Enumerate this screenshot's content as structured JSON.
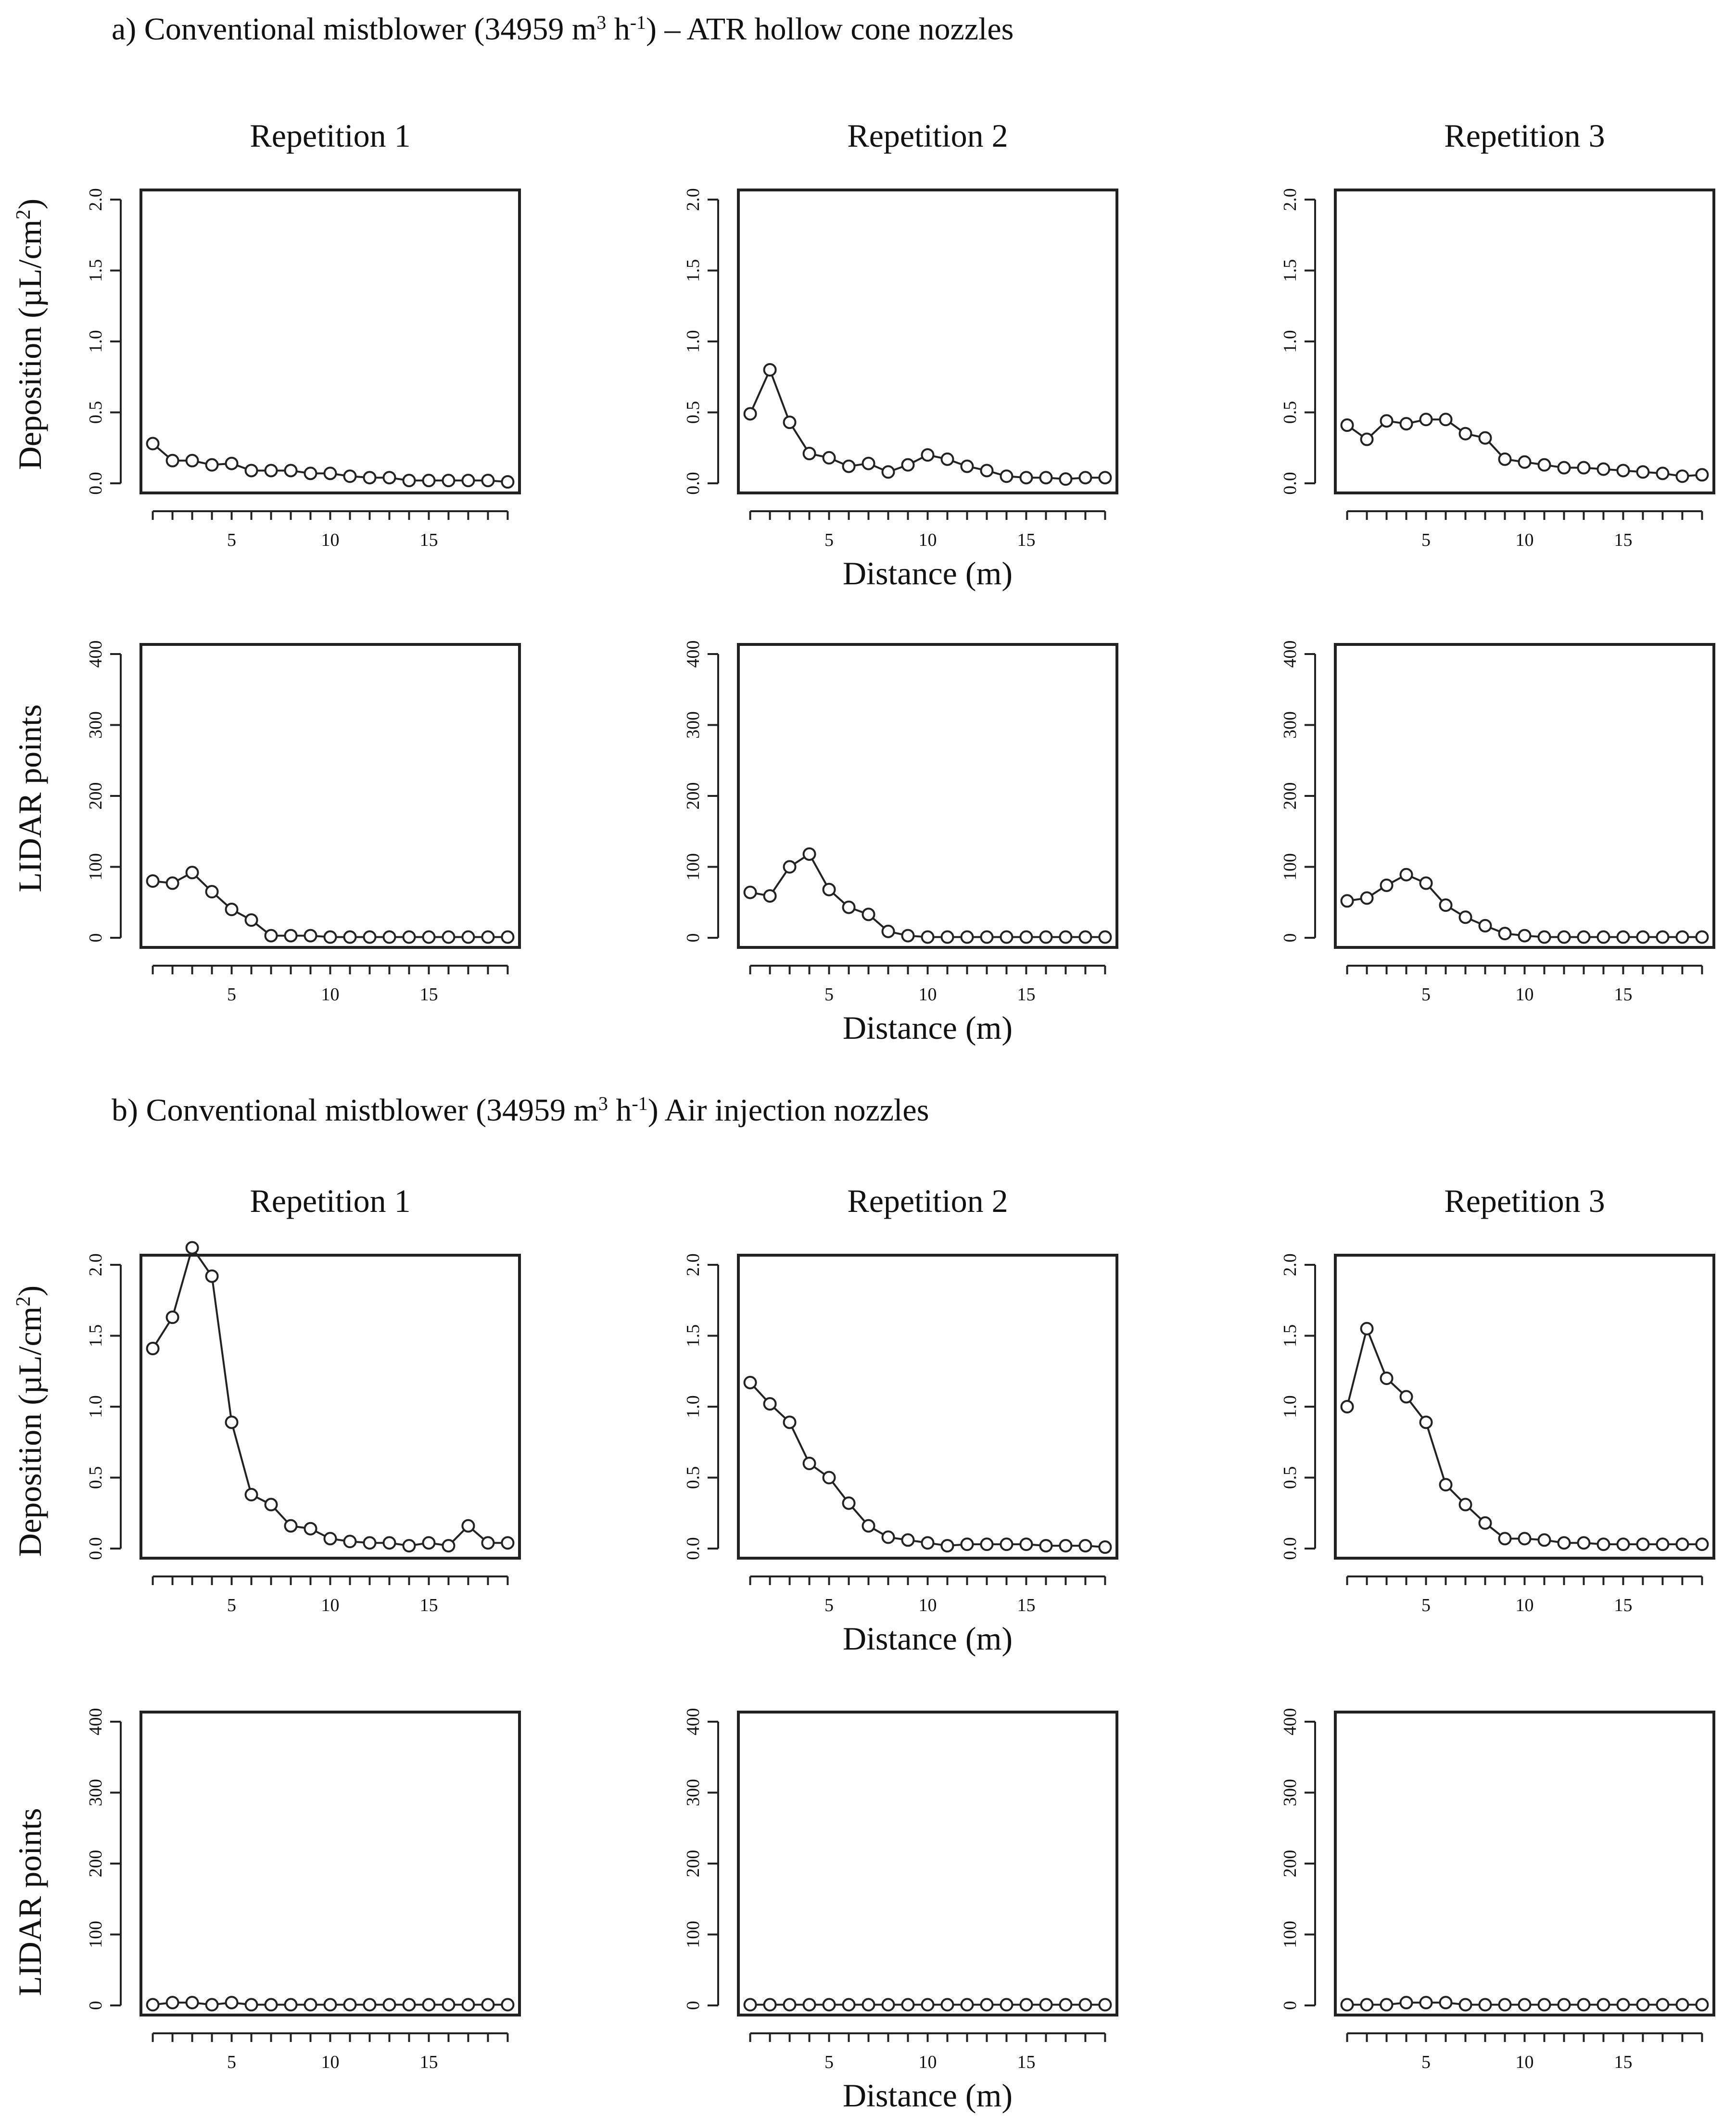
{
  "sections": [
    {
      "title_prefix": "a) Conventional mistblower (34959 m",
      "title_sup1": "3",
      "title_mid": " h",
      "title_sup2": "-1",
      "title_suffix": ") – ATR hollow cone nozzles"
    },
    {
      "title_prefix": "b) Conventional mistblower (34959 m",
      "title_sup1": "3",
      "title_mid": " h",
      "title_sup2": "-1",
      "title_suffix": ") Air injection nozzles"
    }
  ],
  "axis_text": {
    "deposition_ylabel_prefix": "Deposition (µL/cm",
    "deposition_ylabel_sup": "2",
    "deposition_ylabel_suffix": ")",
    "lidar_ylabel": "LIDAR points",
    "xlabel": "Distance (m)"
  },
  "chart_data": [
    {
      "type": "line",
      "title": "Repetition 1",
      "ylabel": "Deposition (µL/cm²)",
      "xlabel": "",
      "x": [
        1,
        2,
        3,
        4,
        5,
        6,
        7,
        8,
        9,
        10,
        11,
        12,
        13,
        14,
        15,
        16,
        17,
        18,
        19
      ],
      "y": [
        0.28,
        0.16,
        0.16,
        0.13,
        0.14,
        0.09,
        0.09,
        0.09,
        0.07,
        0.07,
        0.05,
        0.04,
        0.04,
        0.02,
        0.02,
        0.02,
        0.02,
        0.02,
        0.01
      ],
      "xticks": [
        5,
        10,
        15
      ],
      "yticks": [
        "0.0",
        "0.5",
        "1.0",
        "1.5",
        "2.0"
      ],
      "ylim": [
        0,
        2.0
      ],
      "xlim": [
        0.4,
        19.6
      ]
    },
    {
      "type": "line",
      "title": "Repetition 2",
      "ylabel": "",
      "xlabel": "Distance (m)",
      "x": [
        1,
        2,
        3,
        4,
        5,
        6,
        7,
        8,
        9,
        10,
        11,
        12,
        13,
        14,
        15,
        16,
        17,
        18,
        19
      ],
      "y": [
        0.49,
        0.8,
        0.43,
        0.21,
        0.18,
        0.12,
        0.14,
        0.08,
        0.13,
        0.2,
        0.17,
        0.12,
        0.09,
        0.05,
        0.04,
        0.04,
        0.03,
        0.04,
        0.04
      ],
      "xticks": [
        5,
        10,
        15
      ],
      "yticks": [
        "0.0",
        "0.5",
        "1.0",
        "1.5",
        "2.0"
      ],
      "ylim": [
        0,
        2.0
      ],
      "xlim": [
        0.4,
        19.6
      ]
    },
    {
      "type": "line",
      "title": "Repetition 3",
      "ylabel": "",
      "xlabel": "",
      "x": [
        1,
        2,
        3,
        4,
        5,
        6,
        7,
        8,
        9,
        10,
        11,
        12,
        13,
        14,
        15,
        16,
        17,
        18,
        19
      ],
      "y": [
        0.41,
        0.31,
        0.44,
        0.42,
        0.45,
        0.45,
        0.35,
        0.32,
        0.17,
        0.15,
        0.13,
        0.11,
        0.11,
        0.1,
        0.09,
        0.08,
        0.07,
        0.05,
        0.06
      ],
      "xticks": [
        5,
        10,
        15
      ],
      "yticks": [
        "0.0",
        "0.5",
        "1.0",
        "1.5",
        "2.0"
      ],
      "ylim": [
        0,
        2.0
      ],
      "xlim": [
        0.4,
        19.6
      ]
    },
    {
      "type": "line",
      "title": "",
      "ylabel": "LIDAR points",
      "xlabel": "",
      "x": [
        1,
        2,
        3,
        4,
        5,
        6,
        7,
        8,
        9,
        10,
        11,
        12,
        13,
        14,
        15,
        16,
        17,
        18,
        19
      ],
      "y": [
        80,
        77,
        92,
        65,
        40,
        25,
        3,
        3,
        3,
        1,
        1,
        1,
        1,
        1,
        1,
        1,
        1,
        1,
        1
      ],
      "xticks": [
        5,
        10,
        15
      ],
      "yticks": [
        "0",
        "100",
        "200",
        "300",
        "400"
      ],
      "ylim": [
        0,
        400
      ],
      "xlim": [
        0.4,
        19.6
      ]
    },
    {
      "type": "line",
      "title": "",
      "ylabel": "",
      "xlabel": "Distance (m)",
      "x": [
        1,
        2,
        3,
        4,
        5,
        6,
        7,
        8,
        9,
        10,
        11,
        12,
        13,
        14,
        15,
        16,
        17,
        18,
        19
      ],
      "y": [
        64,
        59,
        100,
        118,
        68,
        43,
        33,
        9,
        3,
        1,
        1,
        1,
        1,
        1,
        1,
        1,
        1,
        1,
        1
      ],
      "xticks": [
        5,
        10,
        15
      ],
      "yticks": [
        "0",
        "100",
        "200",
        "300",
        "400"
      ],
      "ylim": [
        0,
        400
      ],
      "xlim": [
        0.4,
        19.6
      ]
    },
    {
      "type": "line",
      "title": "",
      "ylabel": "",
      "xlabel": "",
      "x": [
        1,
        2,
        3,
        4,
        5,
        6,
        7,
        8,
        9,
        10,
        11,
        12,
        13,
        14,
        15,
        16,
        17,
        18,
        19
      ],
      "y": [
        52,
        56,
        74,
        89,
        77,
        46,
        29,
        17,
        6,
        3,
        1,
        1,
        1,
        1,
        1,
        1,
        1,
        1,
        1
      ],
      "xticks": [
        5,
        10,
        15
      ],
      "yticks": [
        "0",
        "100",
        "200",
        "300",
        "400"
      ],
      "ylim": [
        0,
        400
      ],
      "xlim": [
        0.4,
        19.6
      ]
    },
    {
      "type": "line",
      "title": "Repetition 1",
      "ylabel": "Deposition (µL/cm²)",
      "xlabel": "",
      "x": [
        1,
        2,
        3,
        4,
        5,
        6,
        7,
        8,
        9,
        10,
        11,
        12,
        13,
        14,
        15,
        16,
        17,
        18,
        19
      ],
      "y": [
        1.41,
        1.63,
        2.12,
        1.92,
        0.89,
        0.38,
        0.31,
        0.16,
        0.14,
        0.07,
        0.05,
        0.04,
        0.04,
        0.02,
        0.04,
        0.02,
        0.16,
        0.04,
        0.04
      ],
      "xticks": [
        5,
        10,
        15
      ],
      "yticks": [
        "0.0",
        "0.5",
        "1.0",
        "1.5",
        "2.0"
      ],
      "ylim": [
        0,
        2.0
      ],
      "xlim": [
        0.4,
        19.6
      ]
    },
    {
      "type": "line",
      "title": "Repetition 2",
      "ylabel": "",
      "xlabel": "Distance (m)",
      "x": [
        1,
        2,
        3,
        4,
        5,
        6,
        7,
        8,
        9,
        10,
        11,
        12,
        13,
        14,
        15,
        16,
        17,
        18,
        19
      ],
      "y": [
        1.17,
        1.02,
        0.89,
        0.6,
        0.5,
        0.32,
        0.16,
        0.08,
        0.06,
        0.04,
        0.02,
        0.03,
        0.03,
        0.03,
        0.03,
        0.02,
        0.02,
        0.02,
        0.01
      ],
      "xticks": [
        5,
        10,
        15
      ],
      "yticks": [
        "0.0",
        "0.5",
        "1.0",
        "1.5",
        "2.0"
      ],
      "ylim": [
        0,
        2.0
      ],
      "xlim": [
        0.4,
        19.6
      ]
    },
    {
      "type": "line",
      "title": "Repetition 3",
      "ylabel": "",
      "xlabel": "",
      "x": [
        1,
        2,
        3,
        4,
        5,
        6,
        7,
        8,
        9,
        10,
        11,
        12,
        13,
        14,
        15,
        16,
        17,
        18,
        19
      ],
      "y": [
        1.0,
        1.55,
        1.2,
        1.07,
        0.89,
        0.45,
        0.31,
        0.18,
        0.07,
        0.07,
        0.06,
        0.04,
        0.04,
        0.03,
        0.03,
        0.03,
        0.03,
        0.03,
        0.03
      ],
      "xticks": [
        5,
        10,
        15
      ],
      "yticks": [
        "0.0",
        "0.5",
        "1.0",
        "1.5",
        "2.0"
      ],
      "ylim": [
        0,
        2.0
      ],
      "xlim": [
        0.4,
        19.6
      ]
    },
    {
      "type": "line",
      "title": "",
      "ylabel": "LIDAR points",
      "xlabel": "",
      "x": [
        1,
        2,
        3,
        4,
        5,
        6,
        7,
        8,
        9,
        10,
        11,
        12,
        13,
        14,
        15,
        16,
        17,
        18,
        19
      ],
      "y": [
        1,
        4,
        4,
        1,
        4,
        1,
        1,
        1,
        1,
        1,
        1,
        1,
        1,
        1,
        1,
        1,
        1,
        1,
        1
      ],
      "xticks": [
        5,
        10,
        15
      ],
      "yticks": [
        "0",
        "100",
        "200",
        "300",
        "400"
      ],
      "ylim": [
        0,
        400
      ],
      "xlim": [
        0.4,
        19.6
      ]
    },
    {
      "type": "line",
      "title": "",
      "ylabel": "",
      "xlabel": "Distance (m)",
      "x": [
        1,
        2,
        3,
        4,
        5,
        6,
        7,
        8,
        9,
        10,
        11,
        12,
        13,
        14,
        15,
        16,
        17,
        18,
        19
      ],
      "y": [
        1,
        1,
        1,
        1,
        1,
        1,
        1,
        1,
        1,
        1,
        1,
        1,
        1,
        1,
        1,
        1,
        1,
        1,
        1
      ],
      "xticks": [
        5,
        10,
        15
      ],
      "yticks": [
        "0",
        "100",
        "200",
        "300",
        "400"
      ],
      "ylim": [
        0,
        400
      ],
      "xlim": [
        0.4,
        19.6
      ]
    },
    {
      "type": "line",
      "title": "",
      "ylabel": "",
      "xlabel": "",
      "x": [
        1,
        2,
        3,
        4,
        5,
        6,
        7,
        8,
        9,
        10,
        11,
        12,
        13,
        14,
        15,
        16,
        17,
        18,
        19
      ],
      "y": [
        1,
        1,
        1,
        4,
        4,
        4,
        1,
        1,
        1,
        1,
        1,
        1,
        1,
        1,
        1,
        1,
        1,
        1,
        1
      ],
      "xticks": [
        5,
        10,
        15
      ],
      "yticks": [
        "0",
        "100",
        "200",
        "300",
        "400"
      ],
      "ylim": [
        0,
        400
      ],
      "xlim": [
        0.4,
        19.6
      ]
    }
  ]
}
